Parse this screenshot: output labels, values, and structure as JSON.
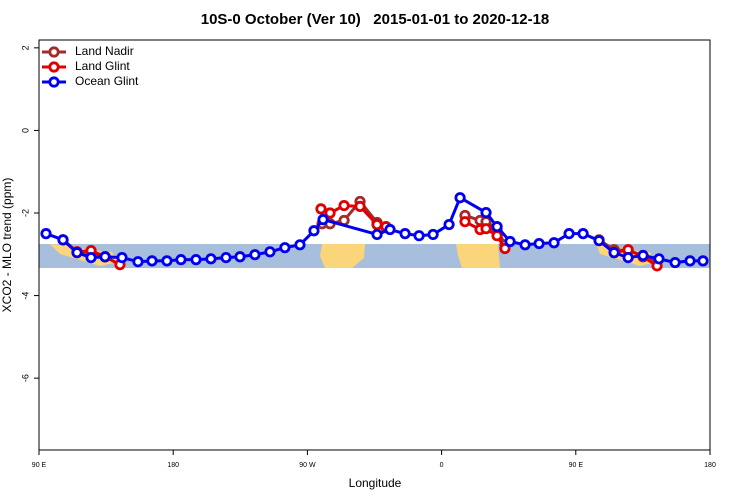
{
  "chart_data": {
    "type": "line",
    "title": "10S-0 October (Ver 10)   2015-01-01 to 2020-12-18",
    "x_label": "Longitude",
    "y_label": "XCO2 - MLO trend (ppm)",
    "xlim": [
      90,
      540
    ],
    "ylim": [
      -7.74,
      2.19
    ],
    "xticks": [
      {
        "value": 90,
        "label": "90 E"
      },
      180,
      {
        "value": 270,
        "label": "90 W"
      },
      {
        "value": 360,
        "label": "0"
      },
      {
        "value": 450,
        "label": "90 E"
      },
      {
        "value": 540,
        "label": "180"
      }
    ],
    "yticks": [
      2,
      0,
      -2,
      -4,
      -6
    ],
    "legend": "top-left",
    "series": [
      {
        "name": "Land Nadir",
        "color": "#a52a2a",
        "x": [
          106.1,
          115.5,
          124.9,
          134.3,
          null,
          279.8,
          285.2,
          294.6,
          305.3,
          316.7,
          322.7,
          null,
          375.7,
          385.8,
          389.8,
          397.2,
          402.5,
          null,
          465.6,
          475.7,
          485.1,
          495.1,
          504.5
        ],
        "values": [
          -2.65,
          -2.94,
          -2.96,
          -3.06,
          null,
          -2.26,
          -2.26,
          -2.18,
          -1.72,
          -2.23,
          -2.35,
          null,
          -2.06,
          -2.18,
          -2.21,
          -2.38,
          -2.77,
          null,
          -2.65,
          -2.89,
          -2.91,
          -3.03,
          -3.16
        ]
      },
      {
        "name": "Land Glint",
        "color": "#e00000",
        "x": [
          106.1,
          115.5,
          124.9,
          134.3,
          144.3,
          null,
          279.1,
          285.2,
          294.6,
          305.3,
          316.7,
          322.7,
          null,
          375.7,
          385.8,
          389.8,
          397.2,
          402.5,
          null,
          475.7,
          485.1,
          495.1,
          504.5
        ],
        "values": [
          -2.65,
          -2.94,
          -2.91,
          -3.06,
          -3.25,
          null,
          -1.9,
          -2.0,
          -1.82,
          -1.84,
          -2.28,
          -2.33,
          null,
          -2.21,
          -2.4,
          -2.38,
          -2.55,
          -2.86,
          null,
          -2.96,
          -2.89,
          -3.06,
          -3.28
        ]
      },
      {
        "name": "Ocean Glint",
        "color": "#0000ee",
        "x": [
          94.7,
          106.1,
          115.5,
          124.9,
          134.3,
          145.7,
          156.4,
          165.8,
          175.8,
          185.2,
          195.3,
          205.3,
          215.4,
          224.8,
          234.8,
          244.9,
          254.9,
          265.0,
          274.4,
          280.5,
          316.7,
          325.4,
          335.5,
          344.9,
          354.3,
          365.0,
          372.4,
          389.8,
          397.2,
          405.9,
          416.0,
          425.4,
          435.4,
          445.5,
          454.9,
          465.6,
          475.7,
          485.1,
          495.1,
          505.8,
          516.6,
          526.6,
          535.3
        ],
        "values": [
          -2.5,
          -2.65,
          -2.96,
          -3.08,
          -3.06,
          -3.08,
          -3.18,
          -3.16,
          -3.16,
          -3.13,
          -3.13,
          -3.11,
          -3.08,
          -3.06,
          -3.01,
          -2.94,
          -2.84,
          -2.77,
          -2.43,
          -2.16,
          -2.52,
          -2.4,
          -2.5,
          -2.55,
          -2.52,
          -2.28,
          -1.63,
          -1.99,
          -2.33,
          -2.69,
          -2.77,
          -2.74,
          -2.72,
          -2.5,
          -2.5,
          -2.67,
          -2.96,
          -3.08,
          -3.03,
          -3.11,
          -3.2,
          -3.16,
          -3.16
        ]
      }
    ]
  }
}
